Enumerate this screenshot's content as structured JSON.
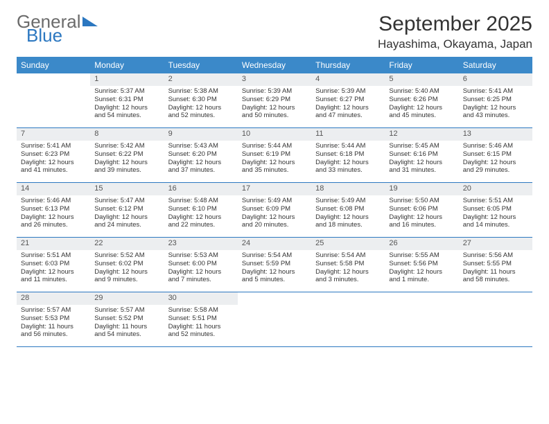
{
  "logo": {
    "text1": "General",
    "text2": "Blue"
  },
  "title": "September 2025",
  "location": "Hayashima, Okayama, Japan",
  "colors": {
    "header_bg": "#3b89c9",
    "border": "#2b77c0",
    "daynum_bg": "#eceef0",
    "logo_gray": "#6b6b6b",
    "logo_blue": "#2b77c0"
  },
  "dayNames": [
    "Sunday",
    "Monday",
    "Tuesday",
    "Wednesday",
    "Thursday",
    "Friday",
    "Saturday"
  ],
  "weeks": [
    [
      null,
      {
        "n": "1",
        "sr": "5:37 AM",
        "ss": "6:31 PM",
        "dl": "12 hours and 54 minutes."
      },
      {
        "n": "2",
        "sr": "5:38 AM",
        "ss": "6:30 PM",
        "dl": "12 hours and 52 minutes."
      },
      {
        "n": "3",
        "sr": "5:39 AM",
        "ss": "6:29 PM",
        "dl": "12 hours and 50 minutes."
      },
      {
        "n": "4",
        "sr": "5:39 AM",
        "ss": "6:27 PM",
        "dl": "12 hours and 47 minutes."
      },
      {
        "n": "5",
        "sr": "5:40 AM",
        "ss": "6:26 PM",
        "dl": "12 hours and 45 minutes."
      },
      {
        "n": "6",
        "sr": "5:41 AM",
        "ss": "6:25 PM",
        "dl": "12 hours and 43 minutes."
      }
    ],
    [
      {
        "n": "7",
        "sr": "5:41 AM",
        "ss": "6:23 PM",
        "dl": "12 hours and 41 minutes."
      },
      {
        "n": "8",
        "sr": "5:42 AM",
        "ss": "6:22 PM",
        "dl": "12 hours and 39 minutes."
      },
      {
        "n": "9",
        "sr": "5:43 AM",
        "ss": "6:20 PM",
        "dl": "12 hours and 37 minutes."
      },
      {
        "n": "10",
        "sr": "5:44 AM",
        "ss": "6:19 PM",
        "dl": "12 hours and 35 minutes."
      },
      {
        "n": "11",
        "sr": "5:44 AM",
        "ss": "6:18 PM",
        "dl": "12 hours and 33 minutes."
      },
      {
        "n": "12",
        "sr": "5:45 AM",
        "ss": "6:16 PM",
        "dl": "12 hours and 31 minutes."
      },
      {
        "n": "13",
        "sr": "5:46 AM",
        "ss": "6:15 PM",
        "dl": "12 hours and 29 minutes."
      }
    ],
    [
      {
        "n": "14",
        "sr": "5:46 AM",
        "ss": "6:13 PM",
        "dl": "12 hours and 26 minutes."
      },
      {
        "n": "15",
        "sr": "5:47 AM",
        "ss": "6:12 PM",
        "dl": "12 hours and 24 minutes."
      },
      {
        "n": "16",
        "sr": "5:48 AM",
        "ss": "6:10 PM",
        "dl": "12 hours and 22 minutes."
      },
      {
        "n": "17",
        "sr": "5:49 AM",
        "ss": "6:09 PM",
        "dl": "12 hours and 20 minutes."
      },
      {
        "n": "18",
        "sr": "5:49 AM",
        "ss": "6:08 PM",
        "dl": "12 hours and 18 minutes."
      },
      {
        "n": "19",
        "sr": "5:50 AM",
        "ss": "6:06 PM",
        "dl": "12 hours and 16 minutes."
      },
      {
        "n": "20",
        "sr": "5:51 AM",
        "ss": "6:05 PM",
        "dl": "12 hours and 14 minutes."
      }
    ],
    [
      {
        "n": "21",
        "sr": "5:51 AM",
        "ss": "6:03 PM",
        "dl": "12 hours and 11 minutes."
      },
      {
        "n": "22",
        "sr": "5:52 AM",
        "ss": "6:02 PM",
        "dl": "12 hours and 9 minutes."
      },
      {
        "n": "23",
        "sr": "5:53 AM",
        "ss": "6:00 PM",
        "dl": "12 hours and 7 minutes."
      },
      {
        "n": "24",
        "sr": "5:54 AM",
        "ss": "5:59 PM",
        "dl": "12 hours and 5 minutes."
      },
      {
        "n": "25",
        "sr": "5:54 AM",
        "ss": "5:58 PM",
        "dl": "12 hours and 3 minutes."
      },
      {
        "n": "26",
        "sr": "5:55 AM",
        "ss": "5:56 PM",
        "dl": "12 hours and 1 minute."
      },
      {
        "n": "27",
        "sr": "5:56 AM",
        "ss": "5:55 PM",
        "dl": "11 hours and 58 minutes."
      }
    ],
    [
      {
        "n": "28",
        "sr": "5:57 AM",
        "ss": "5:53 PM",
        "dl": "11 hours and 56 minutes."
      },
      {
        "n": "29",
        "sr": "5:57 AM",
        "ss": "5:52 PM",
        "dl": "11 hours and 54 minutes."
      },
      {
        "n": "30",
        "sr": "5:58 AM",
        "ss": "5:51 PM",
        "dl": "11 hours and 52 minutes."
      },
      null,
      null,
      null,
      null
    ]
  ],
  "labels": {
    "sunrise": "Sunrise:",
    "sunset": "Sunset:",
    "daylight": "Daylight:"
  }
}
